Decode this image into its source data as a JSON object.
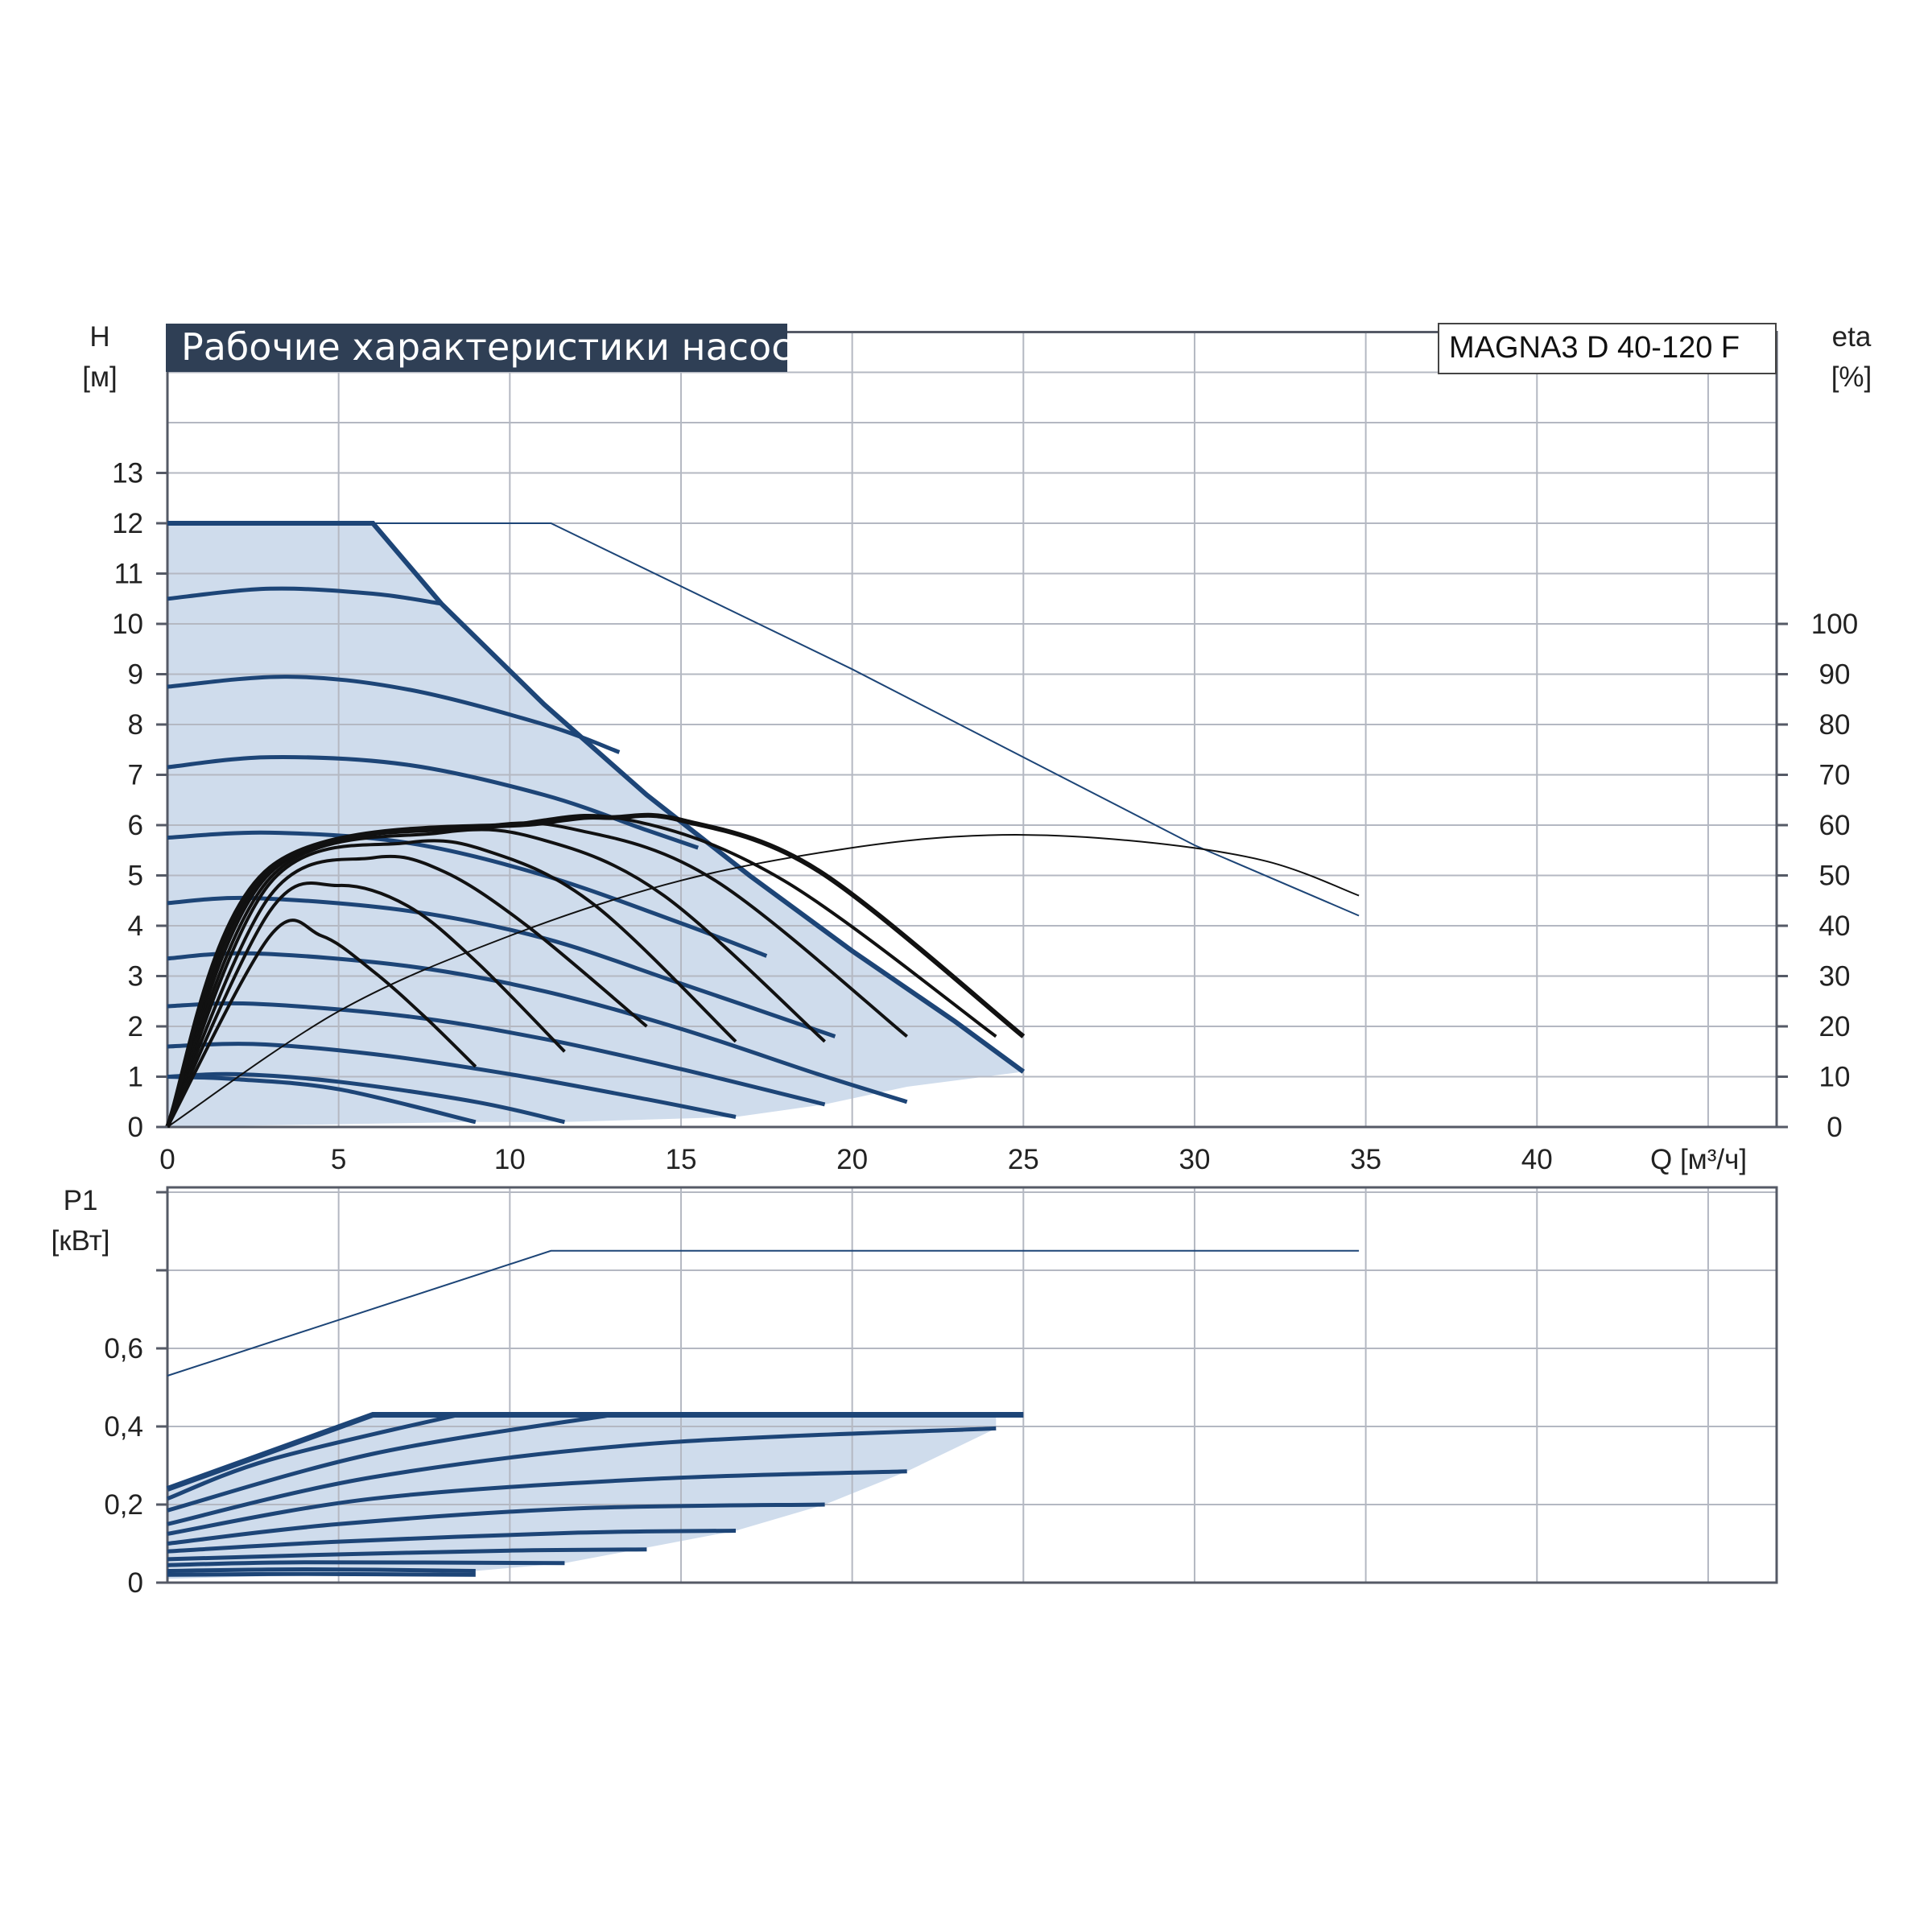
{
  "header": {
    "title": "Рабочие характеристики насоса",
    "model": "MAGNA3 D 40-120 F"
  },
  "colors": {
    "title_bg": "#2f3f55",
    "grid": "#b4b8c2",
    "frame": "#555a66",
    "band_fill": "#cfdcec",
    "curve_blue": "#1d4577",
    "curve_black": "#111111"
  },
  "chart_data": [
    {
      "type": "line",
      "axes": {
        "x": {
          "label": "Q [м³/ч]",
          "range": [
            0,
            47
          ],
          "ticks": [
            "0",
            "5",
            "10",
            "15",
            "20",
            "25",
            "30",
            "35",
            "40"
          ]
        },
        "y_left": {
          "label_top": "H",
          "label_unit": "[м]",
          "range": [
            0,
            13
          ],
          "ticks": [
            "0",
            "1",
            "2",
            "3",
            "4",
            "5",
            "6",
            "7",
            "8",
            "9",
            "10",
            "11",
            "12",
            "13"
          ]
        },
        "y_right": {
          "label_top": "eta",
          "label_unit": "[%]",
          "range": [
            0,
            100
          ],
          "ticks": [
            "0",
            "10",
            "20",
            "30",
            "40",
            "50",
            "60",
            "70",
            "80",
            "90",
            "100"
          ]
        }
      },
      "grid": true,
      "max_curve": [
        [
          0,
          12
        ],
        [
          6,
          12
        ],
        [
          8,
          10.4
        ],
        [
          11,
          8.4
        ],
        [
          14,
          6.6
        ],
        [
          17,
          5.0
        ],
        [
          20,
          3.5
        ],
        [
          23,
          2.1
        ],
        [
          25,
          1.1
        ]
      ],
      "max_curve_dual": [
        [
          0,
          12
        ],
        [
          11.2,
          12
        ],
        [
          20,
          9.1
        ],
        [
          30,
          5.6
        ],
        [
          34.8,
          4.2
        ]
      ],
      "head_curves": [
        [
          [
            0,
            10.5
          ],
          [
            3,
            10.7
          ],
          [
            6,
            10.6
          ],
          [
            8,
            10.4
          ]
        ],
        [
          [
            0,
            8.75
          ],
          [
            3.5,
            8.95
          ],
          [
            7,
            8.7
          ],
          [
            11,
            8.0
          ],
          [
            13.2,
            7.45
          ]
        ],
        [
          [
            0,
            7.15
          ],
          [
            3,
            7.35
          ],
          [
            7,
            7.2
          ],
          [
            11,
            6.6
          ],
          [
            14,
            5.9
          ],
          [
            15.5,
            5.55
          ]
        ],
        [
          [
            0,
            5.75
          ],
          [
            3,
            5.85
          ],
          [
            7,
            5.65
          ],
          [
            11,
            5.0
          ],
          [
            15,
            4.05
          ],
          [
            17.5,
            3.4
          ]
        ],
        [
          [
            0,
            4.45
          ],
          [
            2.5,
            4.55
          ],
          [
            7,
            4.3
          ],
          [
            11,
            3.75
          ],
          [
            15,
            2.85
          ],
          [
            19.5,
            1.8
          ]
        ],
        [
          [
            0,
            3.35
          ],
          [
            2.5,
            3.45
          ],
          [
            7,
            3.2
          ],
          [
            11,
            2.7
          ],
          [
            15,
            1.95
          ],
          [
            19,
            1.05
          ],
          [
            21.6,
            0.5
          ]
        ],
        [
          [
            0,
            2.4
          ],
          [
            2.5,
            2.45
          ],
          [
            7,
            2.2
          ],
          [
            11,
            1.75
          ],
          [
            15,
            1.15
          ],
          [
            19.2,
            0.45
          ]
        ],
        [
          [
            0,
            1.6
          ],
          [
            2.5,
            1.65
          ],
          [
            6,
            1.45
          ],
          [
            10,
            1.05
          ],
          [
            14,
            0.55
          ],
          [
            16.6,
            0.2
          ]
        ],
        [
          [
            0,
            1.0
          ],
          [
            2,
            1.05
          ],
          [
            5,
            0.9
          ],
          [
            9,
            0.5
          ],
          [
            11.6,
            0.1
          ]
        ],
        [
          [
            0,
            1.0
          ],
          [
            2,
            0.95
          ],
          [
            5,
            0.75
          ],
          [
            9,
            0.1
          ]
        ]
      ],
      "band_bottom": [
        [
          9,
          0.1
        ],
        [
          11.6,
          0.1
        ],
        [
          16.6,
          0.2
        ],
        [
          19.2,
          0.45
        ],
        [
          21.6,
          0.8
        ],
        [
          25,
          1.1
        ]
      ],
      "eta_curves": [
        [
          [
            0,
            0
          ],
          [
            3,
            38
          ],
          [
            4.5,
            38
          ],
          [
            6,
            31
          ],
          [
            7.5,
            22
          ],
          [
            9,
            12
          ]
        ],
        [
          [
            0,
            0
          ],
          [
            3,
            43
          ],
          [
            5,
            48
          ],
          [
            7,
            44
          ],
          [
            9,
            33
          ],
          [
            11.6,
            15
          ]
        ],
        [
          [
            0,
            0
          ],
          [
            3,
            46
          ],
          [
            6,
            53.5
          ],
          [
            8,
            51
          ],
          [
            10.5,
            40
          ],
          [
            14,
            20
          ]
        ],
        [
          [
            0,
            0
          ],
          [
            3,
            48.5
          ],
          [
            7,
            56.5
          ],
          [
            9.5,
            54.5
          ],
          [
            12.5,
            44
          ],
          [
            16.6,
            17
          ]
        ],
        [
          [
            0,
            0
          ],
          [
            3,
            49.5
          ],
          [
            8,
            58.5
          ],
          [
            11,
            57
          ],
          [
            14.5,
            46
          ],
          [
            19.2,
            17
          ]
        ],
        [
          [
            0,
            0
          ],
          [
            3,
            50.5
          ],
          [
            9,
            59.5
          ],
          [
            12,
            59
          ],
          [
            16,
            49
          ],
          [
            21.6,
            18
          ]
        ],
        [
          [
            0,
            0
          ],
          [
            3,
            51
          ],
          [
            10,
            60
          ],
          [
            13.5,
            61
          ],
          [
            18,
            49
          ],
          [
            24.2,
            18
          ]
        ],
        [
          [
            0,
            0
          ],
          [
            3,
            51.5
          ],
          [
            11,
            60.5
          ],
          [
            13,
            61.5
          ],
          [
            15,
            61
          ],
          [
            19,
            51
          ],
          [
            25,
            18
          ]
        ]
      ],
      "eta_dual": [
        [
          0,
          0
        ],
        [
          5,
          23
        ],
        [
          10,
          38
        ],
        [
          15,
          49
        ],
        [
          20,
          55.5
        ],
        [
          24,
          58
        ],
        [
          28,
          57
        ],
        [
          32,
          53
        ],
        [
          34.8,
          46
        ]
      ]
    },
    {
      "type": "line",
      "axes": {
        "x": {
          "range": [
            0,
            47
          ]
        },
        "y_left": {
          "label_top": "P1",
          "label_unit": "[кВт]",
          "range": [
            0,
            1.0
          ],
          "ticks": [
            "0",
            "0,2",
            "0,4",
            "0,6"
          ]
        }
      },
      "grid": true,
      "max_power": [
        [
          0,
          0.24
        ],
        [
          6,
          0.43
        ],
        [
          25,
          0.43
        ]
      ],
      "max_power_dual": [
        [
          0,
          0.53
        ],
        [
          11.2,
          0.85
        ],
        [
          34.8,
          0.85
        ]
      ],
      "power_curves": [
        [
          [
            0,
            0.215
          ],
          [
            3,
            0.315
          ],
          [
            8.5,
            0.43
          ]
        ],
        [
          [
            0,
            0.185
          ],
          [
            6,
            0.33
          ],
          [
            13,
            0.43
          ]
        ],
        [
          [
            0,
            0.15
          ],
          [
            6,
            0.27
          ],
          [
            14,
            0.355
          ],
          [
            24.2,
            0.395
          ]
        ],
        [
          [
            0,
            0.125
          ],
          [
            6,
            0.215
          ],
          [
            14,
            0.265
          ],
          [
            21.6,
            0.285
          ]
        ],
        [
          [
            0,
            0.1
          ],
          [
            5,
            0.15
          ],
          [
            12,
            0.19
          ],
          [
            19.2,
            0.2
          ]
        ],
        [
          [
            0,
            0.08
          ],
          [
            5,
            0.105
          ],
          [
            12,
            0.128
          ],
          [
            16.6,
            0.133
          ]
        ],
        [
          [
            0,
            0.06
          ],
          [
            4,
            0.07
          ],
          [
            10,
            0.082
          ],
          [
            14,
            0.085
          ]
        ],
        [
          [
            0,
            0.045
          ],
          [
            4,
            0.052
          ],
          [
            11.6,
            0.05
          ]
        ],
        [
          [
            0,
            0.03
          ],
          [
            4,
            0.034
          ],
          [
            9,
            0.03
          ]
        ],
        [
          [
            0,
            0.02
          ],
          [
            4,
            0.022
          ],
          [
            9,
            0.02
          ]
        ]
      ],
      "band_bottom": [
        [
          0,
          0.01
        ],
        [
          9,
          0.03
        ],
        [
          11.6,
          0.05
        ],
        [
          16.6,
          0.133
        ],
        [
          19.2,
          0.2
        ],
        [
          21.6,
          0.285
        ],
        [
          24.2,
          0.395
        ]
      ]
    }
  ]
}
